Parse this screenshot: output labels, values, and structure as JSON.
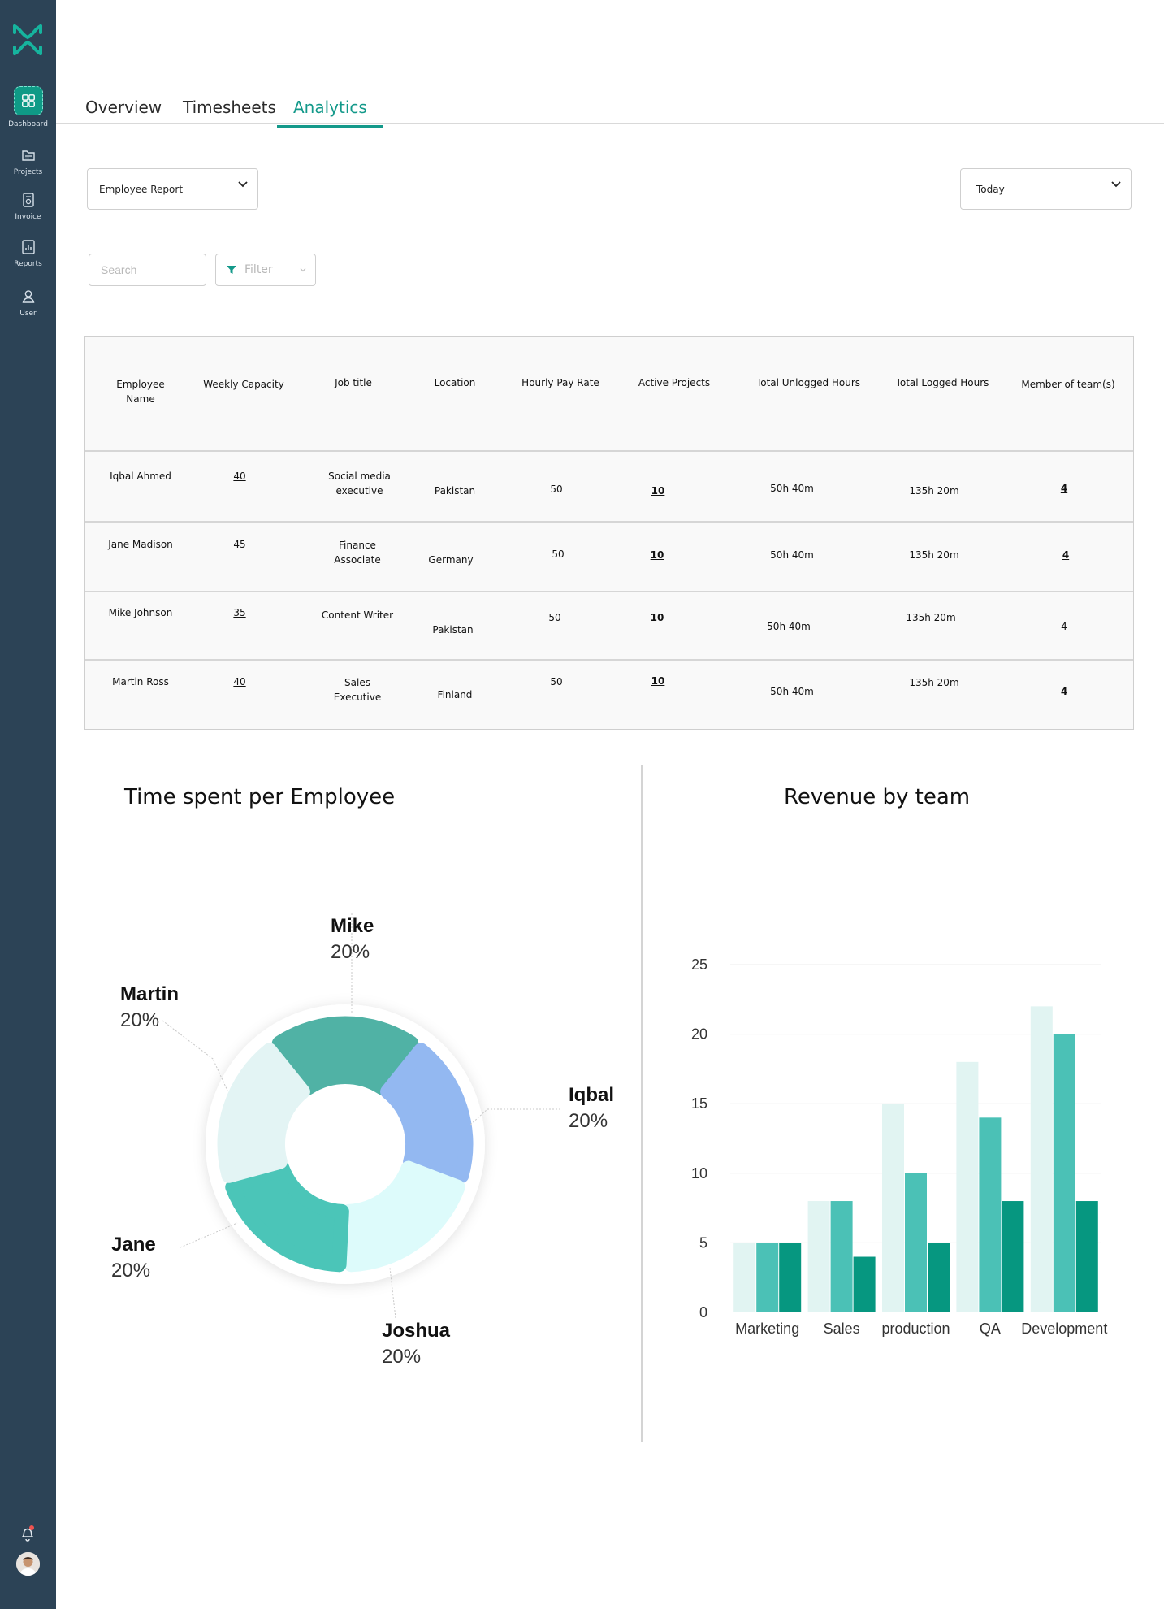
{
  "sidebar": {
    "items": [
      {
        "label": "Dashboard",
        "icon": "dashboard-icon",
        "active": true
      },
      {
        "label": "Projects",
        "icon": "folder-icon"
      },
      {
        "label": "Invoice",
        "icon": "invoice-icon"
      },
      {
        "label": "Reports",
        "icon": "reports-icon"
      },
      {
        "label": "User",
        "icon": "user-icon"
      }
    ]
  },
  "tabs": [
    {
      "label": "Overview"
    },
    {
      "label": "Timesheets"
    },
    {
      "label": "Analytics",
      "active": true
    }
  ],
  "filters": {
    "report_select": "Employee Report",
    "period_select": "Today",
    "search_placeholder": "Search",
    "filter_label": "Filter"
  },
  "table": {
    "headers": [
      "Employee Name",
      "Weekly Capacity",
      "Job title",
      "Location",
      "Hourly Pay Rate",
      "Active Projects",
      "Total Unlogged Hours",
      "Total Logged Hours",
      "Member of team(s)"
    ],
    "rows": [
      {
        "name": "Iqbal Ahmed",
        "capacity": "40",
        "job": "Social media executive",
        "location": "Pakistan",
        "rate": "50",
        "projects": "10",
        "unlogged": "50h 40m",
        "logged": "135h 20m",
        "teams": "4"
      },
      {
        "name": "Jane Madison",
        "capacity": "45",
        "job": "Finance Associate",
        "location": "Germany",
        "rate": "50",
        "projects": "10",
        "unlogged": "50h 40m",
        "logged": "135h 20m",
        "teams": "4"
      },
      {
        "name": "Mike Johnson",
        "capacity": "35",
        "job": "Content Writer",
        "location": "Pakistan",
        "rate": "50",
        "projects": "10",
        "unlogged": "50h 40m",
        "logged": "135h 20m",
        "teams": "4"
      },
      {
        "name": "Martin Ross",
        "capacity": "40",
        "job": "Sales Executive",
        "location": "Finland",
        "rate": "50",
        "projects": "10",
        "unlogged": "50h 40m",
        "logged": "135h 20m",
        "teams": "4"
      }
    ]
  },
  "chart_data": [
    {
      "type": "pie",
      "title": "Time spent per Employee",
      "categories": [
        "Mike",
        "Iqbal",
        "Joshua",
        "Jane",
        "Martin"
      ],
      "values": [
        20,
        20,
        20,
        20,
        20
      ],
      "value_labels": [
        "20%",
        "20%",
        "20%",
        "20%",
        "20%"
      ],
      "colors": [
        "#50b2a5",
        "#93b8f1",
        "#ddfbfb",
        "#4bc5b8",
        "#e3f4f4"
      ]
    },
    {
      "type": "bar",
      "title": "Revenue by team",
      "categories": [
        "Marketing",
        "Sales",
        "production",
        "QA",
        "Development"
      ],
      "series": [
        {
          "values": [
            5,
            8,
            15,
            18,
            22
          ],
          "color": "#e1f4f2"
        },
        {
          "values": [
            5,
            8,
            10,
            14,
            20
          ],
          "color": "#4bc1b6"
        },
        {
          "values": [
            5,
            4,
            5,
            8,
            8
          ],
          "color": "#069780"
        }
      ],
      "yticks": [
        "0",
        "5",
        "10",
        "15",
        "20",
        "25"
      ],
      "ylim": [
        0,
        25
      ],
      "grid": true
    }
  ]
}
